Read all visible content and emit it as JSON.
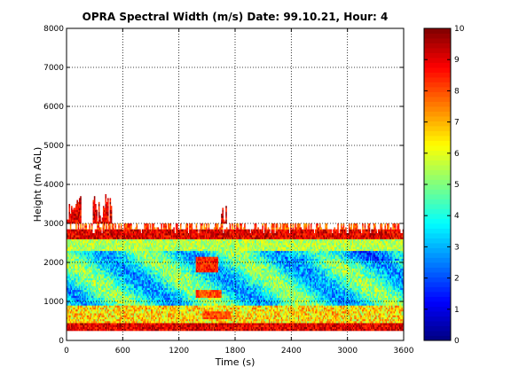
{
  "chart_data": {
    "type": "heatmap",
    "title": "OPRA Spectral Width (m/s)  Date: 99.10.21, Hour: 4",
    "xlabel": "Time (s)",
    "ylabel": "Height (m AGL)",
    "xlim": [
      0,
      3600
    ],
    "ylim": [
      0,
      8000
    ],
    "x_ticks": [
      "0",
      "600",
      "1200",
      "1800",
      "2400",
      "3000",
      "3600"
    ],
    "y_ticks": [
      "0",
      "1000",
      "2000",
      "3000",
      "4000",
      "5000",
      "6000",
      "7000",
      "8000"
    ],
    "grid": true,
    "colorbar": {
      "colormap": "jet",
      "range": [
        0,
        10
      ],
      "ticks": [
        "0",
        "1",
        "2",
        "3",
        "4",
        "5",
        "6",
        "7",
        "8",
        "9",
        "10"
      ]
    },
    "layers": [
      {
        "height_range": [
          250,
          450
        ],
        "approx_value": 9.0
      },
      {
        "height_range": [
          450,
          900
        ],
        "approx_value": 6.5
      },
      {
        "height_range": [
          900,
          2300
        ],
        "approx_value": 4.0
      },
      {
        "height_range": [
          2300,
          2600
        ],
        "approx_value": 5.5
      },
      {
        "height_range": [
          2600,
          2850
        ],
        "approx_value": 9.0
      },
      {
        "height_range": [
          2850,
          3000
        ],
        "approx_value": 8.0
      }
    ],
    "features": [
      {
        "time_range": [
          1380,
          1620
        ],
        "height_range": [
          1750,
          2150
        ],
        "approx_value": 8.5
      },
      {
        "time_range": [
          1380,
          1650
        ],
        "height_range": [
          1100,
          1300
        ],
        "approx_value": 8.0
      },
      {
        "time_range": [
          1450,
          1750
        ],
        "height_range": [
          550,
          750
        ],
        "approx_value": 8.0
      },
      {
        "time_range": [
          0,
          150
        ],
        "height_range": [
          3000,
          4000
        ],
        "approx_value": 9.0
      },
      {
        "time_range": [
          280,
          480
        ],
        "height_range": [
          3000,
          4000
        ],
        "approx_value": 9.0
      },
      {
        "time_range": [
          1650,
          1700
        ],
        "height_range": [
          3000,
          3700
        ],
        "approx_value": 9.0
      }
    ]
  }
}
